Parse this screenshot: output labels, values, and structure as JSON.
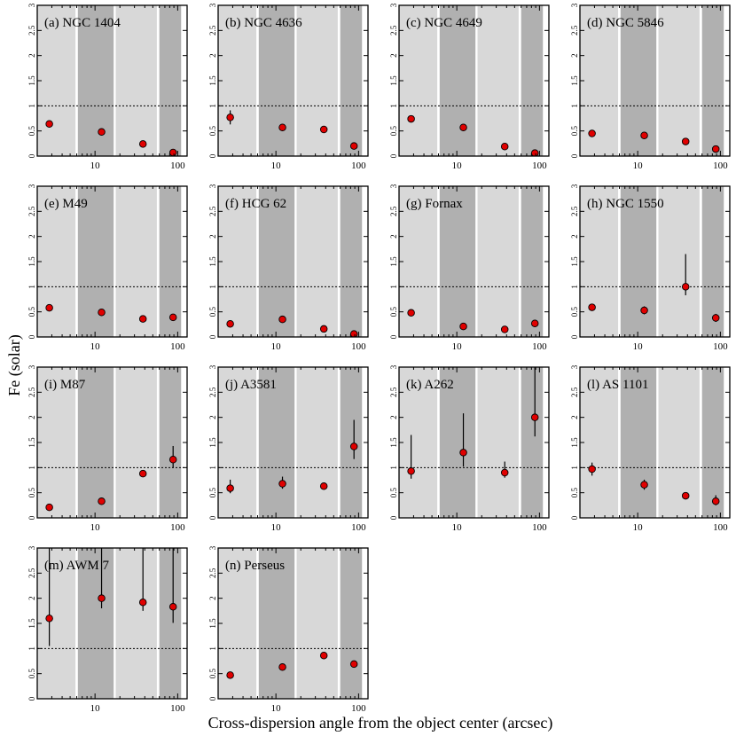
{
  "figure": {
    "ylabel": "Fe (solar)",
    "xlabel": "Cross-dispersion angle from the object center (arcsec)",
    "colors": {
      "band_light": "#d8d8d8",
      "band_dark": "#b0b0b0",
      "marker": "#e00000",
      "reference_line": "#000000"
    }
  },
  "chart_data": [
    {
      "type": "scatter",
      "label": "(a) NGC 1404",
      "xscale": "log",
      "xlim": [
        2,
        130
      ],
      "ylim": [
        0,
        3
      ],
      "x": [
        2.8,
        12,
        38,
        88
      ],
      "y": [
        0.64,
        0.48,
        0.24,
        0.07
      ],
      "yerr_low": [
        0.07,
        0.04,
        0.03,
        0.03
      ],
      "yerr_high": [
        0.07,
        0.04,
        0.03,
        0.05
      ],
      "reference_y": 1
    },
    {
      "type": "scatter",
      "label": "(b) NGC 4636",
      "xscale": "log",
      "xlim": [
        2,
        130
      ],
      "ylim": [
        0,
        3
      ],
      "x": [
        2.8,
        12,
        38,
        88
      ],
      "y": [
        0.77,
        0.57,
        0.53,
        0.2
      ],
      "yerr_low": [
        0.14,
        0.04,
        0.04,
        0.03
      ],
      "yerr_high": [
        0.14,
        0.04,
        0.04,
        0.03
      ],
      "reference_y": 1
    },
    {
      "type": "scatter",
      "label": "(c) NGC 4649",
      "xscale": "log",
      "xlim": [
        2,
        130
      ],
      "ylim": [
        0,
        3
      ],
      "x": [
        2.8,
        12,
        38,
        88
      ],
      "y": [
        0.74,
        0.57,
        0.19,
        0.06
      ],
      "yerr_low": [
        0.05,
        0.04,
        0.04,
        0.03
      ],
      "yerr_high": [
        0.05,
        0.04,
        0.04,
        0.06
      ],
      "reference_y": 1
    },
    {
      "type": "scatter",
      "label": "(d) NGC 5846",
      "xscale": "log",
      "xlim": [
        2,
        130
      ],
      "ylim": [
        0,
        3
      ],
      "x": [
        2.8,
        12,
        38,
        88
      ],
      "y": [
        0.45,
        0.41,
        0.29,
        0.14
      ],
      "yerr_low": [
        0.04,
        0.04,
        0.03,
        0.03
      ],
      "yerr_high": [
        0.04,
        0.04,
        0.03,
        0.03
      ],
      "reference_y": 1
    },
    {
      "type": "scatter",
      "label": "(e) M49",
      "xscale": "log",
      "xlim": [
        2,
        130
      ],
      "ylim": [
        0,
        3
      ],
      "x": [
        2.8,
        12,
        38,
        88
      ],
      "y": [
        0.58,
        0.49,
        0.36,
        0.39
      ],
      "yerr_low": [
        0.04,
        0.03,
        0.03,
        0.04
      ],
      "yerr_high": [
        0.04,
        0.03,
        0.03,
        0.04
      ],
      "reference_y": 1
    },
    {
      "type": "scatter",
      "label": "(f) HCG 62",
      "xscale": "log",
      "xlim": [
        2,
        130
      ],
      "ylim": [
        0,
        3
      ],
      "x": [
        2.8,
        12,
        38,
        88
      ],
      "y": [
        0.26,
        0.35,
        0.16,
        0.06
      ],
      "yerr_low": [
        0.04,
        0.04,
        0.03,
        0.03
      ],
      "yerr_high": [
        0.04,
        0.04,
        0.03,
        0.05
      ],
      "reference_y": 1
    },
    {
      "type": "scatter",
      "label": "(g) Fornax",
      "xscale": "log",
      "xlim": [
        2,
        130
      ],
      "ylim": [
        0,
        3
      ],
      "x": [
        2.8,
        12,
        38,
        88
      ],
      "y": [
        0.48,
        0.21,
        0.15,
        0.27
      ],
      "yerr_low": [
        0.04,
        0.03,
        0.03,
        0.07
      ],
      "yerr_high": [
        0.04,
        0.03,
        0.03,
        0.07
      ],
      "reference_y": 1
    },
    {
      "type": "scatter",
      "label": "(h) NGC 1550",
      "xscale": "log",
      "xlim": [
        2,
        130
      ],
      "ylim": [
        0,
        3
      ],
      "x": [
        2.8,
        12,
        38,
        88
      ],
      "y": [
        0.59,
        0.53,
        1.0,
        0.38
      ],
      "yerr_low": [
        0.05,
        0.08,
        0.17,
        0.08
      ],
      "yerr_high": [
        0.05,
        0.08,
        0.65,
        0.08
      ],
      "reference_y": 1
    },
    {
      "type": "scatter",
      "label": "(i) M87",
      "xscale": "log",
      "xlim": [
        2,
        130
      ],
      "ylim": [
        0,
        3
      ],
      "x": [
        2.8,
        12,
        38,
        88
      ],
      "y": [
        0.21,
        0.33,
        0.88,
        1.16
      ],
      "yerr_low": [
        0.03,
        0.03,
        0.05,
        0.16
      ],
      "yerr_high": [
        0.03,
        0.03,
        0.05,
        0.27
      ],
      "reference_y": 1
    },
    {
      "type": "scatter",
      "label": "(j) A3581",
      "xscale": "log",
      "xlim": [
        2,
        130
      ],
      "ylim": [
        0,
        3
      ],
      "x": [
        2.8,
        12,
        38,
        88
      ],
      "y": [
        0.59,
        0.68,
        0.63,
        1.42
      ],
      "yerr_low": [
        0.1,
        0.1,
        0.04,
        0.25
      ],
      "yerr_high": [
        0.17,
        0.14,
        0.04,
        0.53
      ],
      "reference_y": 1
    },
    {
      "type": "scatter",
      "label": "(k) A262",
      "xscale": "log",
      "xlim": [
        2,
        130
      ],
      "ylim": [
        0,
        3
      ],
      "x": [
        2.8,
        12,
        38,
        88
      ],
      "y": [
        0.93,
        1.3,
        0.9,
        2.0
      ],
      "yerr_low": [
        0.15,
        0.28,
        0.1,
        0.38
      ],
      "yerr_high": [
        0.72,
        0.78,
        0.22,
        1.0
      ],
      "reference_y": 1
    },
    {
      "type": "scatter",
      "label": "(l) AS 1101",
      "xscale": "log",
      "xlim": [
        2,
        130
      ],
      "ylim": [
        0,
        3
      ],
      "x": [
        2.8,
        12,
        38,
        88
      ],
      "y": [
        0.97,
        0.66,
        0.44,
        0.33
      ],
      "yerr_low": [
        0.13,
        0.1,
        0.06,
        0.08
      ],
      "yerr_high": [
        0.13,
        0.1,
        0.06,
        0.12
      ],
      "reference_y": 1
    },
    {
      "type": "scatter",
      "label": "(m) AWM 7",
      "xscale": "log",
      "xlim": [
        2,
        130
      ],
      "ylim": [
        0,
        3
      ],
      "x": [
        2.8,
        12,
        38,
        88
      ],
      "y": [
        1.6,
        2.0,
        1.92,
        1.83
      ],
      "yerr_low": [
        0.55,
        0.2,
        0.17,
        0.32
      ],
      "yerr_high": [
        1.4,
        1.0,
        1.08,
        1.17
      ],
      "reference_y": 1
    },
    {
      "type": "scatter",
      "label": "(n) Perseus",
      "xscale": "log",
      "xlim": [
        2,
        130
      ],
      "ylim": [
        0,
        3
      ],
      "x": [
        2.8,
        12,
        38,
        88
      ],
      "y": [
        0.47,
        0.63,
        0.86,
        0.69
      ],
      "yerr_low": [
        0.03,
        0.03,
        0.03,
        0.03
      ],
      "yerr_high": [
        0.03,
        0.03,
        0.03,
        0.03
      ],
      "reference_y": 1
    }
  ],
  "bands": [
    {
      "x_from": 2,
      "x_to": 5.8,
      "shade": "light"
    },
    {
      "x_from": 6.2,
      "x_to": 16.8,
      "shade": "dark"
    },
    {
      "x_from": 17.8,
      "x_to": 56,
      "shade": "light"
    },
    {
      "x_from": 60,
      "x_to": 110,
      "shade": "dark"
    }
  ],
  "yticks": [
    0,
    0.5,
    1,
    1.5,
    2,
    2.5,
    3
  ],
  "ytick_labels": [
    "0",
    "0.5",
    "1",
    "1.5",
    "2",
    "2.5",
    "3"
  ],
  "xticks_major": [
    10,
    100
  ],
  "xtick_labels": [
    "10",
    "100"
  ],
  "xticks_minor": [
    2,
    3,
    4,
    5,
    6,
    7,
    8,
    9,
    20,
    30,
    40,
    50,
    60,
    70,
    80,
    90
  ]
}
